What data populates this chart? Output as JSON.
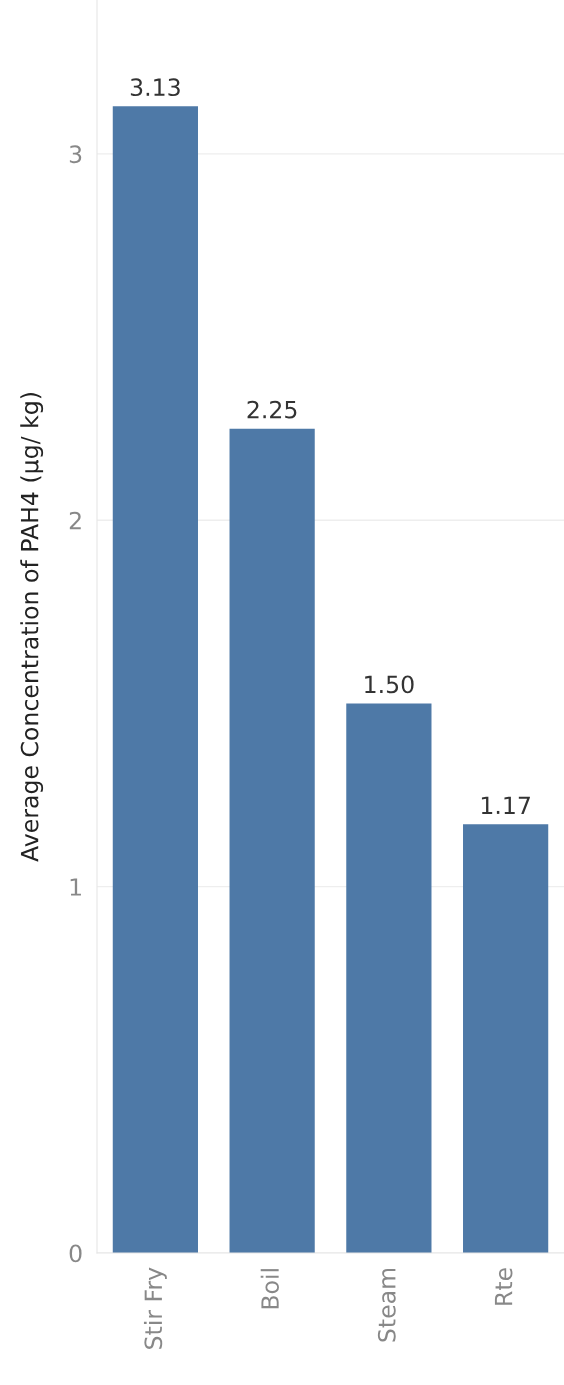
{
  "chart_data": {
    "type": "bar",
    "ylabel": "Average Concentration of PAH4 (µg/ kg)",
    "categories": [
      "Stir Fry",
      "Boil",
      "Steam",
      "Rte"
    ],
    "values": [
      3.13,
      2.25,
      1.5,
      1.17
    ],
    "color": "#4e79a7",
    "ylim": [
      0,
      3.42
    ],
    "yticks": [
      0,
      1,
      2,
      3
    ],
    "grid": "y",
    "value_labels": [
      "3.13",
      "2.25",
      "1.50",
      "1.17"
    ]
  }
}
